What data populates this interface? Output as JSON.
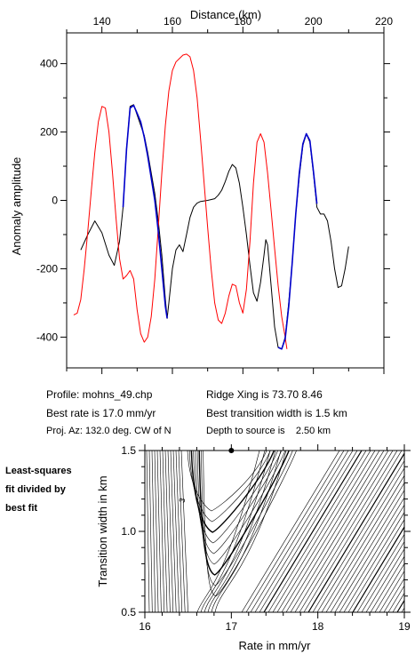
{
  "chart_data": [
    {
      "type": "line",
      "title": "",
      "xlabel": "Distance (km)",
      "ylabel": "Anomaly amplitude",
      "xlim": [
        130,
        220
      ],
      "ylim": [
        -490,
        490
      ],
      "x_ticks": [
        140,
        160,
        180,
        200,
        220
      ],
      "y_ticks": [
        -400,
        -200,
        0,
        200,
        400
      ],
      "x_axis_position": "top",
      "grid": false,
      "series": [
        {
          "color": "#000000",
          "points": [
            [
              134,
              -145
            ],
            [
              136,
              -100
            ],
            [
              138,
              -60
            ],
            [
              140,
              -95
            ],
            [
              142,
              -160
            ],
            [
              143.5,
              -190
            ],
            [
              145,
              -120
            ],
            [
              146,
              -20
            ],
            [
              147,
              150
            ],
            [
              148,
              275
            ],
            [
              149,
              280
            ],
            [
              150,
              250
            ],
            [
              151,
              220
            ],
            [
              152,
              190
            ],
            [
              153,
              140
            ],
            [
              154,
              80
            ],
            [
              155,
              20
            ],
            [
              156,
              -60
            ],
            [
              157,
              -160
            ],
            [
              158,
              -290
            ],
            [
              158.5,
              -345
            ],
            [
              159,
              -300
            ],
            [
              160,
              -200
            ],
            [
              161,
              -145
            ],
            [
              162,
              -130
            ],
            [
              163,
              -150
            ],
            [
              164,
              -100
            ],
            [
              165,
              -50
            ],
            [
              166,
              -20
            ],
            [
              167,
              -8
            ],
            [
              168,
              -3
            ],
            [
              170,
              0
            ],
            [
              172,
              5
            ],
            [
              173,
              15
            ],
            [
              174,
              30
            ],
            [
              175,
              55
            ],
            [
              176,
              85
            ],
            [
              177,
              105
            ],
            [
              178,
              95
            ],
            [
              179,
              50
            ],
            [
              180,
              -20
            ],
            [
              181,
              -100
            ],
            [
              182,
              -190
            ],
            [
              183,
              -270
            ],
            [
              184,
              -295
            ],
            [
              185,
              -240
            ],
            [
              186,
              -160
            ],
            [
              186.5,
              -115
            ],
            [
              187,
              -130
            ],
            [
              188,
              -250
            ],
            [
              189,
              -370
            ],
            [
              190,
              -430
            ],
            [
              191,
              -435
            ],
            [
              192,
              -400
            ],
            [
              193,
              -300
            ],
            [
              194,
              -180
            ],
            [
              195,
              -40
            ],
            [
              196,
              70
            ],
            [
              197,
              160
            ],
            [
              198,
              195
            ],
            [
              199,
              170
            ],
            [
              200,
              80
            ],
            [
              201,
              -20
            ],
            [
              202,
              -40
            ],
            [
              203,
              -40
            ],
            [
              204,
              -60
            ],
            [
              205,
              -120
            ],
            [
              206,
              -200
            ],
            [
              207,
              -255
            ],
            [
              208,
              -250
            ],
            [
              209,
              -200
            ],
            [
              210,
              -135
            ]
          ]
        },
        {
          "color": "#ff0000",
          "points": [
            [
              132,
              -335
            ],
            [
              133,
              -330
            ],
            [
              134,
              -290
            ],
            [
              135,
              -200
            ],
            [
              136,
              -90
            ],
            [
              137,
              30
            ],
            [
              138,
              140
            ],
            [
              139,
              230
            ],
            [
              140,
              275
            ],
            [
              141,
              270
            ],
            [
              142,
              200
            ],
            [
              143,
              80
            ],
            [
              144,
              -50
            ],
            [
              145,
              -170
            ],
            [
              146,
              -230
            ],
            [
              147,
              -220
            ],
            [
              148,
              -205
            ],
            [
              149,
              -230
            ],
            [
              150,
              -320
            ],
            [
              151,
              -390
            ],
            [
              152,
              -415
            ],
            [
              153,
              -400
            ],
            [
              154,
              -340
            ],
            [
              155,
              -230
            ],
            [
              156,
              -80
            ],
            [
              157,
              80
            ],
            [
              158,
              220
            ],
            [
              159,
              320
            ],
            [
              160,
              380
            ],
            [
              161,
              405
            ],
            [
              162,
              415
            ],
            [
              163,
              425
            ],
            [
              164,
              428
            ],
            [
              165,
              420
            ],
            [
              166,
              380
            ],
            [
              167,
              300
            ],
            [
              168,
              180
            ],
            [
              169,
              50
            ],
            [
              170,
              -80
            ],
            [
              171,
              -200
            ],
            [
              172,
              -300
            ],
            [
              173,
              -350
            ],
            [
              174,
              -360
            ],
            [
              175,
              -330
            ],
            [
              176,
              -280
            ],
            [
              177,
              -245
            ],
            [
              178,
              -250
            ],
            [
              179,
              -300
            ],
            [
              180,
              -330
            ],
            [
              181,
              -260
            ],
            [
              182,
              -120
            ],
            [
              183,
              50
            ],
            [
              184,
              170
            ],
            [
              185,
              195
            ],
            [
              186,
              170
            ],
            [
              187,
              80
            ],
            [
              188,
              -30
            ],
            [
              189,
              -140
            ],
            [
              190,
              -250
            ],
            [
              191,
              -340
            ],
            [
              192,
              -400
            ],
            [
              192.5,
              -435
            ]
          ]
        },
        {
          "color": "#0000cc",
          "points": [
            [
              146,
              -20
            ],
            [
              147,
              150
            ],
            [
              148,
              270
            ],
            [
              149,
              278
            ],
            [
              150,
              255
            ],
            [
              151,
              230
            ],
            [
              152,
              185
            ],
            [
              153,
              130
            ],
            [
              154,
              65
            ],
            [
              155,
              0
            ],
            [
              156,
              -90
            ],
            [
              157,
              -200
            ],
            [
              158,
              -310
            ],
            [
              158.5,
              -345
            ]
          ]
        },
        {
          "color": "#0000cc",
          "points": [
            [
              190,
              -430
            ],
            [
              191,
              -435
            ],
            [
              192,
              -405
            ],
            [
              193,
              -310
            ],
            [
              194,
              -180
            ],
            [
              195,
              -40
            ],
            [
              196,
              80
            ],
            [
              197,
              165
            ],
            [
              198,
              195
            ],
            [
              199,
              175
            ],
            [
              200,
              85
            ],
            [
              201,
              -10
            ]
          ]
        }
      ]
    },
    {
      "type": "contour",
      "title": "",
      "xlabel": "Rate in mm/yr",
      "ylabel": "Transition width in km",
      "xlim": [
        16,
        19
      ],
      "ylim": [
        0.5,
        1.5
      ],
      "x_ticks": [
        16,
        17,
        18,
        19
      ],
      "y_ticks": [
        0.5,
        1.0,
        1.5
      ],
      "best_fit_marker": {
        "rate": 17.0,
        "width": 1.5
      },
      "contour_label": "3"
    }
  ],
  "info": {
    "profile": "Profile: mohns_49.chp",
    "best_rate": "Best rate is 17.0 mm/yr",
    "proj_az": "Proj. Az: 132.0 deg. CW of N",
    "ridge_xing": "Ridge Xing is 73.70 8.46",
    "best_width": "Best transition width is 1.5 km",
    "depth": "Depth to source is    2.50 km"
  },
  "side_note": {
    "line1": "Least-squares",
    "line2": "fit divided by",
    "line3": "best fit"
  }
}
